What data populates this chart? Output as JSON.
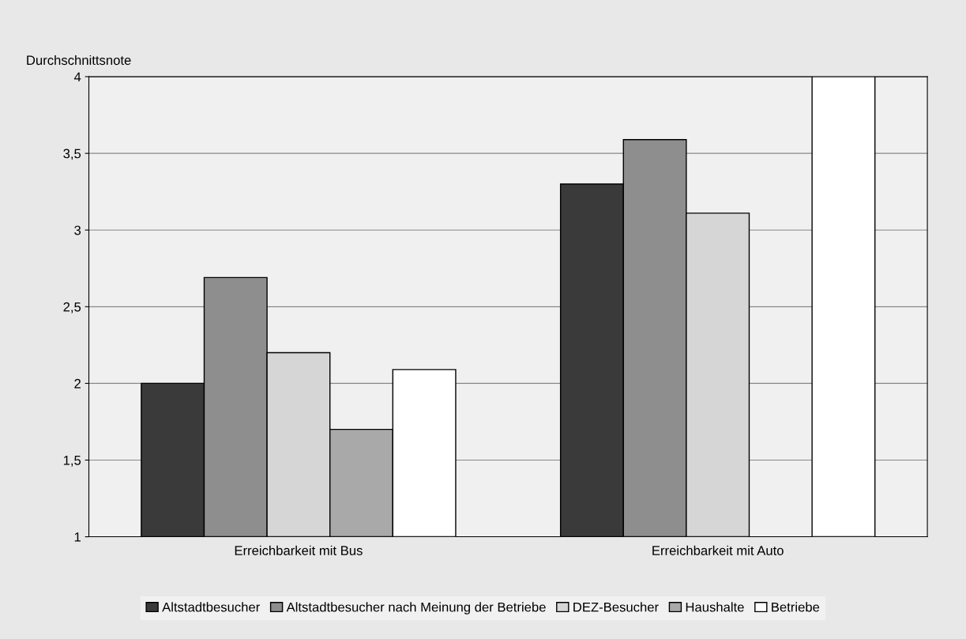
{
  "chart_data": {
    "type": "bar",
    "ylabel": "Durchschnittsnote",
    "categories": [
      "Erreichbarkeit mit Bus",
      "Erreichbarkeit mit Auto"
    ],
    "series": [
      {
        "name": "Altstadtbesucher",
        "color": "#3a3a3a",
        "values": [
          2.0,
          3.3
        ]
      },
      {
        "name": "Altstadtbesucher nach Meinung der Betriebe",
        "color": "#8e8e8e",
        "values": [
          2.69,
          3.59
        ]
      },
      {
        "name": "DEZ-Besucher",
        "color": "#d6d6d6",
        "values": [
          2.2,
          3.11
        ]
      },
      {
        "name": "Haushalte",
        "color": "#a9a9a9",
        "values": [
          1.7,
          null
        ]
      },
      {
        "name": "Betriebe",
        "color": "#ffffff",
        "values": [
          2.09,
          4
        ]
      }
    ],
    "ylim": [
      1,
      4
    ],
    "yticks": [
      {
        "value": 1,
        "label": "1"
      },
      {
        "value": 1.5,
        "label": "1,5"
      },
      {
        "value": 2,
        "label": "2"
      },
      {
        "value": 2.5,
        "label": "2,5"
      },
      {
        "value": 3,
        "label": "3"
      },
      {
        "value": 3.5,
        "label": "3,5"
      },
      {
        "value": 4,
        "label": "4"
      }
    ],
    "grid": "y",
    "legend": "bottom"
  }
}
